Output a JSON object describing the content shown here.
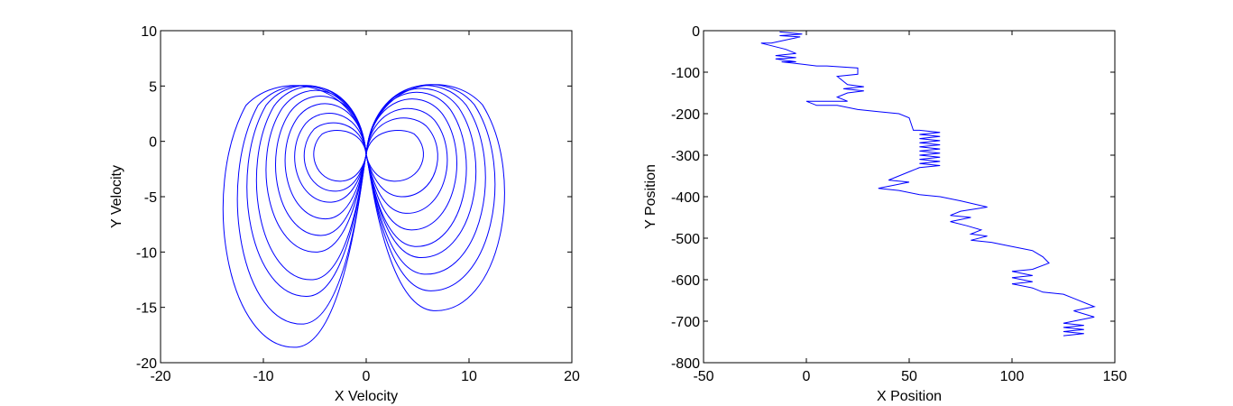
{
  "chart_data": [
    {
      "type": "line",
      "xlabel": "X Velocity",
      "ylabel": "Y Velocity",
      "xlim": [
        -20,
        20
      ],
      "ylim": [
        -20,
        10
      ],
      "xticks": [
        -20,
        -10,
        0,
        10,
        20
      ],
      "yticks": [
        10,
        5,
        0,
        -5,
        -10,
        -15,
        -20
      ],
      "grid": false,
      "series": [
        {
          "color": "#0000ff",
          "curve": "figure-eight loops crossing at (0, -1.2)",
          "loops": [
            {
              "side": "left",
              "width": 5.5,
              "top": 1.2,
              "bottom": -3.6
            },
            {
              "side": "left",
              "width": 6.5,
              "top": 2.0,
              "bottom": -4.5
            },
            {
              "side": "left",
              "width": 7.5,
              "top": 3.0,
              "bottom": -5.5
            },
            {
              "side": "left",
              "width": 8.5,
              "top": 4.0,
              "bottom": -7.0
            },
            {
              "side": "left",
              "width": 9.5,
              "top": 4.8,
              "bottom": -8.5
            },
            {
              "side": "left",
              "width": 10.5,
              "top": 5.4,
              "bottom": -10.0
            },
            {
              "side": "left",
              "width": 11.5,
              "top": 5.8,
              "bottom": -12.5
            },
            {
              "side": "left",
              "width": 12.5,
              "top": 5.9,
              "bottom": -14.0
            },
            {
              "side": "left",
              "width": 13.5,
              "top": 5.9,
              "bottom": -16.5
            },
            {
              "side": "left",
              "width": 15.0,
              "top": 5.9,
              "bottom": -18.6
            },
            {
              "side": "right",
              "width": 6.0,
              "top": 1.2,
              "bottom": -3.6
            },
            {
              "side": "right",
              "width": 7.5,
              "top": 2.5,
              "bottom": -5.0
            },
            {
              "side": "right",
              "width": 8.5,
              "top": 3.5,
              "bottom": -6.5
            },
            {
              "side": "right",
              "width": 9.5,
              "top": 4.5,
              "bottom": -8.0
            },
            {
              "side": "right",
              "width": 10.5,
              "top": 5.2,
              "bottom": -9.5
            },
            {
              "side": "right",
              "width": 11.5,
              "top": 5.6,
              "bottom": -10.5
            },
            {
              "side": "right",
              "width": 12.5,
              "top": 5.9,
              "bottom": -12.0
            },
            {
              "side": "right",
              "width": 13.5,
              "top": 6.0,
              "bottom": -13.5
            },
            {
              "side": "right",
              "width": 14.5,
              "top": 6.0,
              "bottom": -15.3
            }
          ]
        }
      ]
    },
    {
      "type": "line",
      "xlabel": "X Position",
      "ylabel": "Y Position",
      "xlim": [
        -50,
        150
      ],
      "ylim": [
        -800,
        0
      ],
      "xticks": [
        -50,
        0,
        50,
        100,
        150
      ],
      "yticks": [
        0,
        -100,
        -200,
        -300,
        -400,
        -500,
        -600,
        -700,
        -800
      ],
      "grid": false,
      "series": [
        {
          "color": "#0000ff",
          "path": [
            [
              -13,
              -3
            ],
            [
              -2,
              -8
            ],
            [
              -13,
              -12
            ],
            [
              -3,
              -15
            ],
            [
              -17,
              -30
            ],
            [
              -22,
              -30
            ],
            [
              -10,
              -45
            ],
            [
              -5,
              -55
            ],
            [
              -15,
              -60
            ],
            [
              -5,
              -65
            ],
            [
              -15,
              -68
            ],
            [
              -5,
              -75
            ],
            [
              -12,
              -75
            ],
            [
              5,
              -85
            ],
            [
              10,
              -85
            ],
            [
              25,
              -90
            ],
            [
              25,
              -105
            ],
            [
              15,
              -110
            ],
            [
              20,
              -130
            ],
            [
              28,
              -135
            ],
            [
              18,
              -140
            ],
            [
              28,
              -145
            ],
            [
              20,
              -150
            ],
            [
              15,
              -160
            ],
            [
              20,
              -170
            ],
            [
              0,
              -170
            ],
            [
              5,
              -180
            ],
            [
              15,
              -180
            ],
            [
              25,
              -190
            ],
            [
              35,
              -195
            ],
            [
              45,
              -200
            ],
            [
              50,
              -210
            ],
            [
              52,
              -240
            ],
            [
              55,
              -240
            ],
            [
              65,
              -245
            ],
            [
              55,
              -250
            ],
            [
              65,
              -255
            ],
            [
              55,
              -260
            ],
            [
              65,
              -265
            ],
            [
              55,
              -270
            ],
            [
              65,
              -275
            ],
            [
              55,
              -280
            ],
            [
              65,
              -285
            ],
            [
              55,
              -290
            ],
            [
              65,
              -295
            ],
            [
              55,
              -300
            ],
            [
              65,
              -305
            ],
            [
              55,
              -310
            ],
            [
              65,
              -315
            ],
            [
              55,
              -320
            ],
            [
              65,
              -325
            ],
            [
              55,
              -330
            ],
            [
              50,
              -340
            ],
            [
              45,
              -350
            ],
            [
              40,
              -360
            ],
            [
              50,
              -365
            ],
            [
              35,
              -380
            ],
            [
              45,
              -385
            ],
            [
              55,
              -395
            ],
            [
              65,
              -400
            ],
            [
              75,
              -410
            ],
            [
              88,
              -425
            ],
            [
              75,
              -435
            ],
            [
              70,
              -445
            ],
            [
              80,
              -450
            ],
            [
              70,
              -460
            ],
            [
              78,
              -470
            ],
            [
              85,
              -480
            ],
            [
              80,
              -490
            ],
            [
              88,
              -495
            ],
            [
              80,
              -505
            ],
            [
              90,
              -510
            ],
            [
              100,
              -520
            ],
            [
              110,
              -530
            ],
            [
              115,
              -545
            ],
            [
              118,
              -560
            ],
            [
              110,
              -575
            ],
            [
              100,
              -580
            ],
            [
              110,
              -590
            ],
            [
              100,
              -595
            ],
            [
              110,
              -605
            ],
            [
              100,
              -610
            ],
            [
              110,
              -620
            ],
            [
              115,
              -630
            ],
            [
              125,
              -635
            ],
            [
              130,
              -645
            ],
            [
              140,
              -665
            ],
            [
              130,
              -675
            ],
            [
              140,
              -690
            ],
            [
              125,
              -705
            ],
            [
              135,
              -710
            ],
            [
              125,
              -715
            ],
            [
              135,
              -720
            ],
            [
              125,
              -725
            ],
            [
              135,
              -730
            ],
            [
              125,
              -735
            ]
          ]
        }
      ]
    }
  ]
}
